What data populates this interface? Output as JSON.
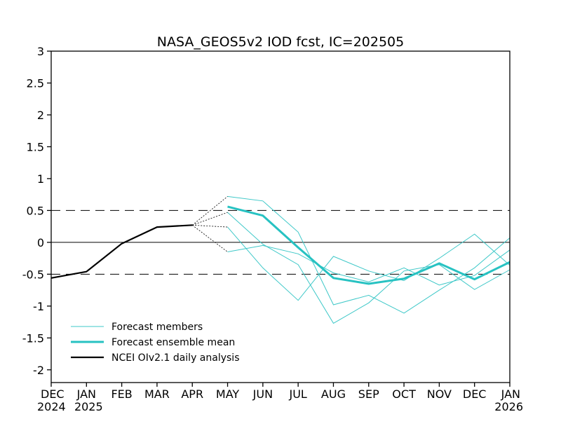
{
  "chart_data": {
    "type": "line",
    "title": "NASA_GEOS5v2 IOD fcst, IC=202505",
    "xlabel": "",
    "ylabel": "",
    "ylim": [
      -2.2,
      3
    ],
    "yticks": [
      "3",
      "2.5",
      "2",
      "1.5",
      "1",
      "0.5",
      "0",
      "-0.5",
      "-1",
      "-1.5",
      "-2"
    ],
    "yticks_values": [
      3,
      2.5,
      2,
      1.5,
      1,
      0.5,
      0,
      -0.5,
      -1,
      -1.5,
      -2
    ],
    "months": [
      "DEC",
      "JAN",
      "FEB",
      "MAR",
      "APR",
      "MAY",
      "JUN",
      "JUL",
      "AUG",
      "SEP",
      "OCT",
      "NOV",
      "DEC",
      "JAN"
    ],
    "year_labels": [
      {
        "index": 0,
        "text": "2024"
      },
      {
        "index": 1,
        "text": "2025"
      },
      {
        "index": 13,
        "text": "2026"
      }
    ],
    "reference_lines": {
      "dashed": [
        0.5,
        -0.5
      ],
      "solid": [
        0
      ]
    },
    "grid": false,
    "legend_placement": "bottom-left",
    "analysis": {
      "name": "NCEI OIv2.1 daily analysis",
      "color": "#000000",
      "x": [
        0,
        1,
        2,
        3,
        4
      ],
      "values": [
        -0.56,
        -0.46,
        -0.02,
        0.24,
        0.27
      ]
    },
    "members": {
      "name": "Forecast members",
      "color": "#3ec8c8",
      "lines": [
        {
          "x": [
            5,
            6,
            7,
            8,
            9,
            10,
            11,
            12,
            13
          ],
          "values": [
            0.72,
            0.65,
            0.16,
            -0.98,
            -0.83,
            -1.11,
            -0.75,
            -0.4,
            0.07
          ]
        },
        {
          "x": [
            5,
            6,
            7,
            8,
            9,
            10,
            11,
            12,
            13
          ],
          "values": [
            0.47,
            -0.03,
            -0.35,
            -1.27,
            -0.95,
            -0.45,
            -0.35,
            -0.74,
            -0.43
          ]
        },
        {
          "x": [
            5,
            6,
            7,
            8,
            9,
            10,
            11,
            12,
            13
          ],
          "values": [
            0.24,
            -0.4,
            -0.91,
            -0.22,
            -0.45,
            -0.6,
            -0.25,
            0.13,
            -0.36
          ]
        },
        {
          "x": [
            5,
            6,
            7,
            8,
            9,
            10,
            11,
            12,
            13
          ],
          "values": [
            -0.15,
            -0.05,
            -0.18,
            -0.48,
            -0.62,
            -0.4,
            -0.67,
            -0.52,
            -0.12
          ]
        }
      ]
    },
    "ensemble_mean": {
      "name": "Forecast ensemble mean",
      "color": "#27c2c2",
      "x": [
        5,
        6,
        7,
        8,
        9,
        10,
        11,
        12,
        13
      ],
      "values": [
        0.56,
        0.42,
        -0.08,
        -0.56,
        -0.65,
        -0.57,
        -0.33,
        -0.58,
        -0.31
      ]
    },
    "connectors": {
      "from_x": 4,
      "from_value": 0.27,
      "to_x": 5,
      "to_values": [
        0.72,
        0.47,
        0.24,
        -0.15
      ]
    }
  }
}
